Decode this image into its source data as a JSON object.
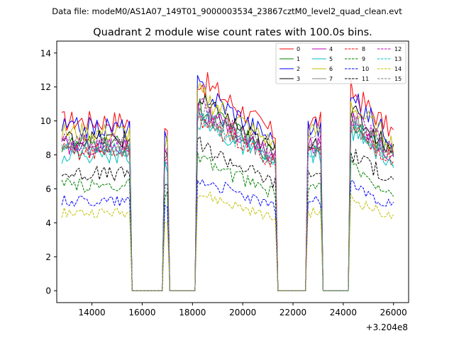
{
  "chart_data": {
    "type": "line",
    "suptitle": "Data file: modeM0/AS1A07_149T01_9000003534_23867cztM0_level2_quad_clean.evt",
    "title": "Quadrant 2 module wise count rates with 100.0s bins.",
    "xlabel": "",
    "ylabel": "",
    "x_offset_label": "+3.204e8",
    "xlim": [
      12600,
      26600
    ],
    "ylim": [
      -0.7,
      14.7
    ],
    "xticks": [
      14000,
      16000,
      18000,
      20000,
      22000,
      24000,
      26000
    ],
    "xtick_labels": [
      "14000",
      "16000",
      "18000",
      "20000",
      "22000",
      "24000",
      "26000"
    ],
    "yticks": [
      0,
      2,
      4,
      6,
      8,
      10,
      12,
      14
    ],
    "ytick_labels": [
      "0",
      "2",
      "4",
      "6",
      "8",
      "10",
      "12",
      "14"
    ],
    "legend_position": "top-right",
    "legend_columns": 4,
    "segments": [
      {
        "start": 12800,
        "end": 15500,
        "level": 1.0,
        "trend": 0.0
      },
      {
        "start": 16900,
        "end": 17000,
        "level": 0.93,
        "trend": 0.0
      },
      {
        "start": 18200,
        "end": 21300,
        "level": 1.25,
        "trend": -0.33
      },
      {
        "start": 22600,
        "end": 23100,
        "level": 1.0,
        "trend": 0.0
      },
      {
        "start": 24300,
        "end": 26000,
        "level": 1.18,
        "trend": -0.25
      }
    ],
    "gap_value": 0.0,
    "series": [
      {
        "name": "0",
        "color": "#ff0000",
        "dash": "solid",
        "base": 10.0
      },
      {
        "name": "1",
        "color": "#008000",
        "dash": "solid",
        "base": 8.6
      },
      {
        "name": "2",
        "color": "#0000ff",
        "dash": "solid",
        "base": 9.6
      },
      {
        "name": "3",
        "color": "#000000",
        "dash": "solid",
        "base": 8.9
      },
      {
        "name": "4",
        "color": "#bf00bf",
        "dash": "solid",
        "base": 8.5
      },
      {
        "name": "5",
        "color": "#00bfbf",
        "dash": "solid",
        "base": 8.0
      },
      {
        "name": "6",
        "color": "#bfbf00",
        "dash": "solid",
        "base": 9.3
      },
      {
        "name": "7",
        "color": "#808080",
        "dash": "solid",
        "base": 8.4
      },
      {
        "name": "8",
        "color": "#ff0000",
        "dash": "dashed",
        "base": 8.2
      },
      {
        "name": "9",
        "color": "#008000",
        "dash": "dashed",
        "base": 6.2
      },
      {
        "name": "10",
        "color": "#0000ff",
        "dash": "dashed",
        "base": 5.3
      },
      {
        "name": "11",
        "color": "#000000",
        "dash": "dashed",
        "base": 6.9
      },
      {
        "name": "12",
        "color": "#bf00bf",
        "dash": "dashed",
        "base": 8.7
      },
      {
        "name": "13",
        "color": "#00bfbf",
        "dash": "dashed",
        "base": 8.3
      },
      {
        "name": "14",
        "color": "#bfbf00",
        "dash": "dashed",
        "base": 4.6
      },
      {
        "name": "15",
        "color": "#808080",
        "dash": "dashed",
        "base": 8.6
      }
    ]
  }
}
